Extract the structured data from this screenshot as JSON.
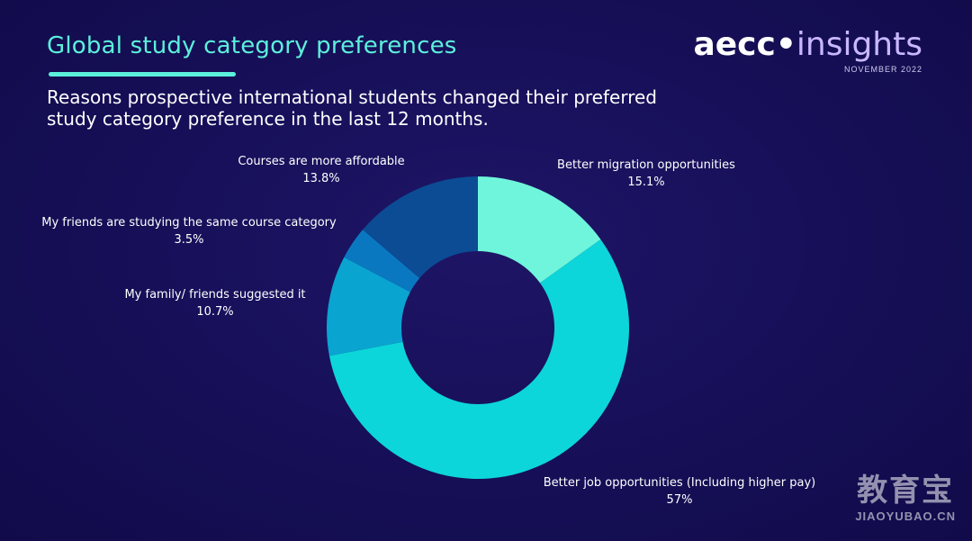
{
  "header": {
    "title": "Global study category preferences",
    "subtitle": "Reasons prospective international students changed their preferred study category preference in the last 12 months."
  },
  "brand": {
    "name_part1": "aecc",
    "name_part2": "insights",
    "date": "NOVEMBER 2022"
  },
  "watermark": {
    "cn": "教育宝",
    "en": "JIAOYUBAO.CN"
  },
  "chart_data": {
    "type": "pie",
    "donut": true,
    "title": "",
    "slices": [
      {
        "label": "Better migration opportunities",
        "value": 15.1,
        "value_label": "15.1%",
        "color": "#6ff5db"
      },
      {
        "label": "Better job opportunities (Including higher pay)",
        "value": 57,
        "value_label": "57%",
        "color": "#0cd6d9"
      },
      {
        "label": "My family/ friends suggested it",
        "value": 10.7,
        "value_label": "10.7%",
        "color": "#0aa4d1"
      },
      {
        "label": "My friends are studying the same course category",
        "value": 3.5,
        "value_label": "3.5%",
        "color": "#0a78c1"
      },
      {
        "label": "Courses are more affordable",
        "value": 13.8,
        "value_label": "13.8%",
        "color": "#0b4c95"
      }
    ]
  }
}
